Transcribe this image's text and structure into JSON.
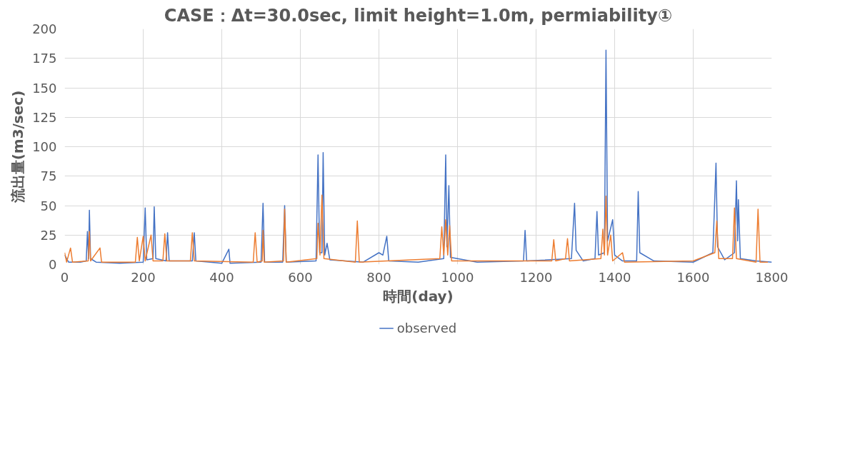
{
  "chart_data": {
    "type": "line",
    "title": "CASE：Δt=30.0sec, limit height=1.0m, permiability①",
    "xlabel": "時間(day)",
    "ylabel": "流出量(m3/sec)",
    "xlim": [
      0,
      1800
    ],
    "xticks": [
      0,
      200,
      400,
      600,
      800,
      1000,
      1200,
      1400,
      1600,
      1800
    ],
    "ylim": [
      0,
      200
    ],
    "yticks": [
      0,
      25,
      50,
      75,
      100,
      125,
      150,
      175,
      200
    ],
    "grid": true,
    "legend": "bottom",
    "line_style": "solid",
    "marker": "none",
    "series": [
      {
        "name": "observed",
        "color": "#4472c4",
        "x": [
          0,
          10,
          40,
          55,
          58,
          61,
          63,
          66,
          80,
          140,
          200,
          205,
          209,
          225,
          228,
          232,
          258,
          262,
          266,
          325,
          330,
          334,
          400,
          418,
          421,
          500,
          505,
          509,
          555,
          560,
          564,
          640,
          645,
          649,
          655,
          658,
          662,
          668,
          675,
          760,
          800,
          810,
          820,
          825,
          900,
          965,
          970,
          973,
          978,
          982,
          1050,
          1168,
          1172,
          1176,
          1290,
          1298,
          1302,
          1320,
          1350,
          1355,
          1359,
          1374,
          1378,
          1382,
          1395,
          1400,
          1420,
          1456,
          1460,
          1464,
          1500,
          1600,
          1650,
          1658,
          1662,
          1680,
          1705,
          1710,
          1713,
          1715,
          1720,
          1760,
          1800
        ],
        "values": [
          8,
          2,
          2,
          3,
          28,
          5,
          46,
          5,
          2,
          1,
          2,
          48,
          4,
          5,
          49,
          5,
          3,
          27,
          3,
          3,
          27,
          3,
          1,
          13,
          1,
          2,
          52,
          2,
          2,
          50,
          2,
          3,
          93,
          10,
          10,
          95,
          8,
          18,
          4,
          2,
          10,
          8,
          24,
          3,
          2,
          5,
          93,
          15,
          67,
          6,
          2,
          3,
          29,
          3,
          5,
          52,
          12,
          3,
          5,
          45,
          8,
          10,
          182,
          20,
          38,
          8,
          3,
          3,
          62,
          10,
          3,
          2,
          10,
          86,
          15,
          4,
          10,
          71,
          20,
          55,
          5,
          3,
          2
        ]
      },
      {
        "name": null,
        "color": "#ed7d31",
        "x": [
          0,
          5,
          15,
          20,
          60,
          63,
          66,
          90,
          94,
          180,
          185,
          190,
          200,
          205,
          220,
          225,
          250,
          255,
          260,
          320,
          325,
          330,
          480,
          485,
          490,
          503,
          505,
          508,
          557,
          560,
          564,
          642,
          645,
          650,
          655,
          660,
          740,
          745,
          750,
          955,
          960,
          965,
          970,
          975,
          980,
          985,
          1240,
          1245,
          1250,
          1275,
          1280,
          1285,
          1365,
          1370,
          1374,
          1378,
          1382,
          1390,
          1395,
          1420,
          1425,
          1600,
          1655,
          1660,
          1665,
          1700,
          1705,
          1710,
          1760,
          1765,
          1770,
          1790
        ],
        "values": [
          10,
          2,
          14,
          2,
          3,
          28,
          3,
          14,
          2,
          2,
          23,
          3,
          24,
          3,
          25,
          3,
          3,
          26,
          3,
          3,
          27,
          3,
          2,
          27,
          2,
          3,
          29,
          2,
          3,
          47,
          2,
          5,
          35,
          8,
          59,
          5,
          2,
          37,
          2,
          5,
          32,
          8,
          38,
          8,
          33,
          3,
          3,
          21,
          3,
          5,
          22,
          3,
          5,
          30,
          8,
          58,
          8,
          25,
          3,
          10,
          2,
          3,
          10,
          37,
          5,
          5,
          48,
          5,
          2,
          47,
          2,
          2
        ]
      }
    ]
  }
}
